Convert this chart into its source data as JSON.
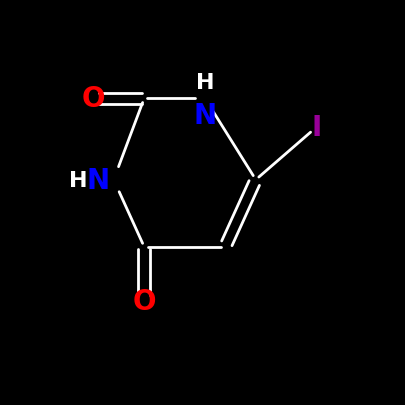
{
  "bg_color": "#000000",
  "bond_color": "#ffffff",
  "o_color": "#ff0000",
  "n_color": "#0000ff",
  "i_color": "#990099",
  "bond_width": 2.0,
  "font_size_N": 20,
  "font_size_H": 16,
  "font_size_O": 20,
  "font_size_I": 20,
  "figsize": [
    4.06,
    4.06
  ],
  "dpi": 100,
  "N1": [
    5.05,
    7.55
  ],
  "C2": [
    3.55,
    7.55
  ],
  "O2": [
    2.3,
    7.55
  ],
  "N3": [
    2.8,
    5.55
  ],
  "C4": [
    3.55,
    3.9
  ],
  "O4": [
    3.55,
    2.55
  ],
  "C5": [
    5.55,
    3.9
  ],
  "C6": [
    6.3,
    5.55
  ],
  "I": [
    7.8,
    6.85
  ],
  "xlim": [
    0,
    10
  ],
  "ylim": [
    0,
    10
  ]
}
